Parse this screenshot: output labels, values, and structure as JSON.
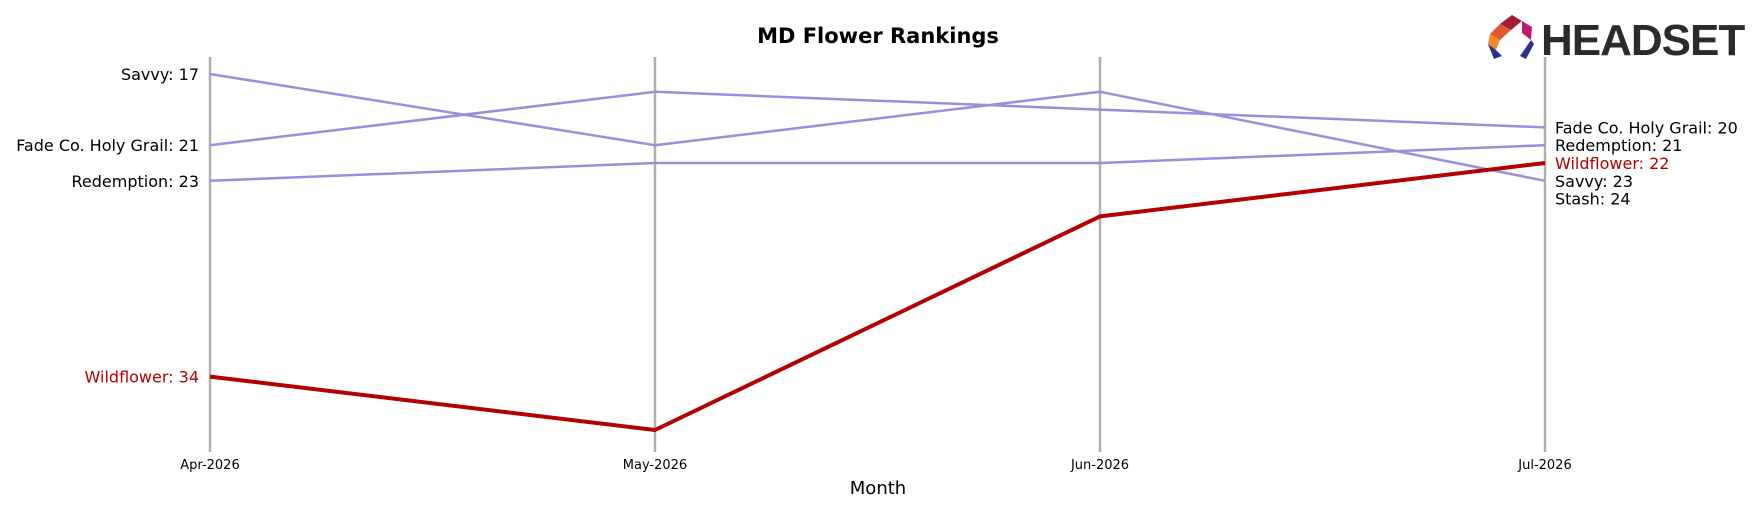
{
  "chart_data": {
    "type": "line",
    "title": "MD Flower Rankings",
    "xlabel": "Month",
    "ylabel": "",
    "x": [
      "Apr-2026",
      "May-2026",
      "Jun-2026",
      "Jul-2026"
    ],
    "ylim": [
      39,
      14
    ],
    "y_inverted": true,
    "grid": "vertical",
    "series": [
      {
        "name": "Savvy",
        "values": [
          17,
          21,
          18,
          23
        ],
        "color": "#9b8fdb",
        "highlight": false,
        "left_label": "Savvy: 17",
        "right_label": "Savvy: 23"
      },
      {
        "name": "Fade Co. Holy Grail",
        "values": [
          21,
          18,
          19,
          20
        ],
        "color": "#9b8fdb",
        "highlight": false,
        "left_label": "Fade Co. Holy Grail: 21",
        "right_label": "Fade Co. Holy Grail: 20"
      },
      {
        "name": "Redemption",
        "values": [
          23,
          22,
          22,
          21
        ],
        "color": "#9b8fdb",
        "highlight": false,
        "left_label": "Redemption: 23",
        "right_label": "Redemption: 21"
      },
      {
        "name": "Wildflower",
        "values": [
          34,
          37,
          25,
          22
        ],
        "color": "#b30000",
        "highlight": true,
        "left_label": "Wildflower: 34",
        "right_label": "Wildflower: 22"
      }
    ],
    "extra_right_labels": [
      {
        "text": "Stash: 24",
        "value": 24,
        "color": "#000000"
      }
    ]
  },
  "logo": {
    "text": "HEADSET"
  }
}
